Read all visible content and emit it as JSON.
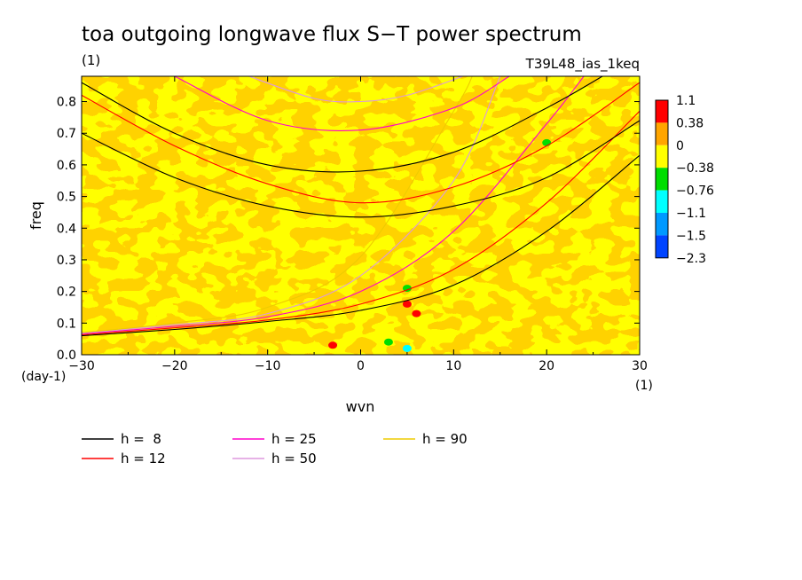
{
  "chart_data": {
    "type": "heatmap",
    "title": "toa outgoing longwave flux S−T power spectrum",
    "units_label": "(1)",
    "experiment_label": "T39L48_ias_1keq",
    "xlabel": "wvn",
    "ylabel": "freq",
    "x_unit": "(1)",
    "y_unit": "(day-1)",
    "xlim": [
      -30,
      30
    ],
    "ylim": [
      0,
      0.88
    ],
    "x_ticks": [
      -30,
      -20,
      -10,
      0,
      10,
      20,
      30
    ],
    "y_ticks": [
      0.0,
      0.1,
      0.2,
      0.3,
      0.4,
      0.5,
      0.6,
      0.7,
      0.8
    ],
    "y_tick_labels": [
      "0.0",
      "0.1",
      "0.2",
      "0.3",
      "0.4",
      "0.5",
      "0.6",
      "0.7",
      "0.8"
    ],
    "colorbar": {
      "levels": [
        1.1,
        0.38,
        0,
        -0.38,
        -0.76,
        -1.1,
        -1.5,
        -2.3
      ],
      "level_labels": [
        "1.1",
        "0.38",
        "0",
        "−0.38",
        "−0.76",
        "−1.1",
        "−1.5",
        "−2.3"
      ],
      "colors": [
        "#ff0000",
        "#ffa500",
        "#ffff00",
        "#00dd00",
        "#00ffff",
        "#0099ff",
        "#0044ff"
      ]
    },
    "field": {
      "dominant_bands": [
        "0 to 0.38",
        "-0.38 to 0"
      ],
      "hotspots": [
        {
          "x": 5,
          "y": 0.16,
          "value_band": "above 0.38"
        },
        {
          "x": 6,
          "y": 0.13,
          "value_band": "above 0.38"
        },
        {
          "x": -3,
          "y": 0.03,
          "value_band": "above 0.38"
        }
      ],
      "coldspots": [
        {
          "x": 5,
          "y": 0.21,
          "value_band": "-0.76 to -0.38"
        },
        {
          "x": 3,
          "y": 0.04,
          "value_band": "-0.76 to -0.38"
        },
        {
          "x": 5,
          "y": 0.02,
          "value_band": "-1.1 to -0.76"
        },
        {
          "x": 20,
          "y": 0.67,
          "value_band": "-0.76 to -0.38"
        }
      ]
    },
    "legend": {
      "placement": "below plot",
      "entries": [
        {
          "label": "h =  8",
          "color": "#000000"
        },
        {
          "label": "h = 12",
          "color": "#ff0000"
        },
        {
          "label": "h = 25",
          "color": "#ff00cc"
        },
        {
          "label": "h = 50",
          "color": "#dd99dd"
        },
        {
          "label": "h = 90",
          "color": "#eecc00"
        }
      ]
    },
    "series": [
      {
        "name": "h =  8",
        "color": "#000000",
        "kind": "kelvin",
        "points": [
          [
            -30,
            0.06
          ],
          [
            -20,
            0.08
          ],
          [
            -10,
            0.105
          ],
          [
            0,
            0.14
          ],
          [
            10,
            0.22
          ],
          [
            20,
            0.39
          ],
          [
            30,
            0.63
          ]
        ]
      },
      {
        "name": "h = 12",
        "color": "#ff0000",
        "kind": "kelvin",
        "points": [
          [
            -30,
            0.063
          ],
          [
            -20,
            0.085
          ],
          [
            -10,
            0.11
          ],
          [
            0,
            0.16
          ],
          [
            10,
            0.27
          ],
          [
            20,
            0.48
          ],
          [
            30,
            0.77
          ]
        ]
      },
      {
        "name": "h = 25",
        "color": "#ff00cc",
        "kind": "kelvin",
        "points": [
          [
            -30,
            0.066
          ],
          [
            -20,
            0.09
          ],
          [
            -10,
            0.12
          ],
          [
            0,
            0.2
          ],
          [
            10,
            0.39
          ],
          [
            20,
            0.73
          ],
          [
            24,
            0.88
          ]
        ]
      },
      {
        "name": "h = 50",
        "color": "#dd99dd",
        "kind": "kelvin",
        "points": [
          [
            -30,
            0.068
          ],
          [
            -20,
            0.095
          ],
          [
            -10,
            0.13
          ],
          [
            0,
            0.25
          ],
          [
            10,
            0.55
          ],
          [
            15,
            0.88
          ]
        ]
      },
      {
        "name": "h = 90",
        "color": "#eecc00",
        "kind": "kelvin",
        "points": [
          [
            -30,
            0.07
          ],
          [
            -20,
            0.1
          ],
          [
            -10,
            0.15
          ],
          [
            0,
            0.31
          ],
          [
            10,
            0.77
          ],
          [
            12,
            0.88
          ]
        ]
      },
      {
        "name": "h =  8",
        "color": "#000000",
        "kind": "inertia-gravity",
        "points": [
          [
            -30,
            0.7
          ],
          [
            -20,
            0.56
          ],
          [
            -10,
            0.47
          ],
          [
            0,
            0.435
          ],
          [
            10,
            0.47
          ],
          [
            20,
            0.56
          ],
          [
            30,
            0.74
          ]
        ]
      },
      {
        "name": "h = 12",
        "color": "#ff0000",
        "kind": "inertia-gravity",
        "points": [
          [
            -30,
            0.82
          ],
          [
            -20,
            0.66
          ],
          [
            -10,
            0.54
          ],
          [
            0,
            0.48
          ],
          [
            10,
            0.53
          ],
          [
            20,
            0.66
          ],
          [
            30,
            0.86
          ]
        ]
      },
      {
        "name": "h =  8",
        "color": "#000000",
        "kind": "inertia-gravity-n2",
        "points": [
          [
            -30,
            0.86
          ],
          [
            -20,
            0.7
          ],
          [
            -10,
            0.6
          ],
          [
            0,
            0.58
          ],
          [
            10,
            0.64
          ],
          [
            20,
            0.78
          ],
          [
            26,
            0.88
          ]
        ]
      },
      {
        "name": "h = 25",
        "color": "#ff00cc",
        "kind": "inertia-gravity",
        "points": [
          [
            -20,
            0.88
          ],
          [
            -10,
            0.74
          ],
          [
            0,
            0.71
          ],
          [
            10,
            0.78
          ],
          [
            16,
            0.88
          ]
        ]
      },
      {
        "name": "h = 50",
        "color": "#dd99dd",
        "kind": "inertia-gravity",
        "points": [
          [
            -12,
            0.88
          ],
          [
            -5,
            0.81
          ],
          [
            0,
            0.8
          ],
          [
            5,
            0.82
          ],
          [
            11,
            0.88
          ]
        ]
      }
    ]
  }
}
